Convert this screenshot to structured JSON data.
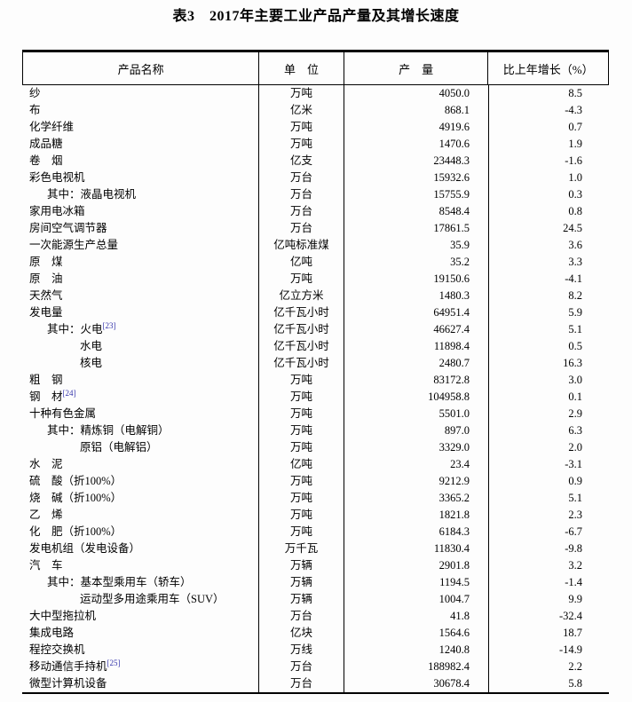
{
  "title": "表3　2017年主要工业产品产量及其增长速度",
  "colors": {
    "text": "#000000",
    "border": "#000000",
    "footnote_link": "#3333aa",
    "background": "#fdfdfd"
  },
  "table": {
    "columns": [
      "产品名称",
      "单　位",
      "产　量",
      "比上年增长（%）"
    ],
    "rows": [
      {
        "name": "纱",
        "indent": 0,
        "unit": "万吨",
        "output": "4050.0",
        "growth": "8.5"
      },
      {
        "name": "布",
        "indent": 0,
        "unit": "亿米",
        "output": "868.1",
        "growth": "-4.3"
      },
      {
        "name": "化学纤维",
        "indent": 0,
        "unit": "万吨",
        "output": "4919.6",
        "growth": "0.7"
      },
      {
        "name": "成品糖",
        "indent": 0,
        "unit": "万吨",
        "output": "1470.6",
        "growth": "1.9"
      },
      {
        "name": "卷　烟",
        "indent": 0,
        "unit": "亿支",
        "output": "23448.3",
        "growth": "-1.6"
      },
      {
        "name": "彩色电视机",
        "indent": 0,
        "unit": "万台",
        "output": "15932.6",
        "growth": "1.0"
      },
      {
        "name": "其中：液晶电视机",
        "indent": 1,
        "unit": "万台",
        "output": "15755.9",
        "growth": "0.3"
      },
      {
        "name": "家用电冰箱",
        "indent": 0,
        "unit": "万台",
        "output": "8548.4",
        "growth": "0.8"
      },
      {
        "name": "房间空气调节器",
        "indent": 0,
        "unit": "万台",
        "output": "17861.5",
        "growth": "24.5"
      },
      {
        "name": "一次能源生产总量",
        "indent": 0,
        "unit": "亿吨标准煤",
        "output": "35.9",
        "growth": "3.6"
      },
      {
        "name": "原　煤",
        "indent": 0,
        "unit": "亿吨",
        "output": "35.2",
        "growth": "3.3"
      },
      {
        "name": "原　油",
        "indent": 0,
        "unit": "万吨",
        "output": "19150.6",
        "growth": "-4.1"
      },
      {
        "name": "天然气",
        "indent": 0,
        "unit": "亿立方米",
        "output": "1480.3",
        "growth": "8.2"
      },
      {
        "name": "发电量",
        "indent": 0,
        "unit": "亿千瓦小时",
        "output": "64951.4",
        "growth": "5.9"
      },
      {
        "name": "其中：火电",
        "sup": "[23]",
        "indent": 1,
        "unit": "亿千瓦小时",
        "output": "46627.4",
        "growth": "5.1"
      },
      {
        "name": "水电",
        "indent": 2,
        "unit": "亿千瓦小时",
        "output": "11898.4",
        "growth": "0.5"
      },
      {
        "name": "核电",
        "indent": 2,
        "unit": "亿千瓦小时",
        "output": "2480.7",
        "growth": "16.3"
      },
      {
        "name": "粗　钢",
        "indent": 0,
        "unit": "万吨",
        "output": "83172.8",
        "growth": "3.0"
      },
      {
        "name": "钢　材",
        "sup": "[24]",
        "indent": 0,
        "unit": "万吨",
        "output": "104958.8",
        "growth": "0.1"
      },
      {
        "name": "十种有色金属",
        "indent": 0,
        "unit": "万吨",
        "output": "5501.0",
        "growth": "2.9"
      },
      {
        "name": "其中：精炼铜（电解铜）",
        "indent": 1,
        "unit": "万吨",
        "output": "897.0",
        "growth": "6.3"
      },
      {
        "name": "原铝（电解铝）",
        "indent": 2,
        "unit": "万吨",
        "output": "3329.0",
        "growth": "2.0"
      },
      {
        "name": "水　泥",
        "indent": 0,
        "unit": "亿吨",
        "output": "23.4",
        "growth": "-3.1"
      },
      {
        "name": "硫　酸（折100%）",
        "indent": 0,
        "unit": "万吨",
        "output": "9212.9",
        "growth": "0.9"
      },
      {
        "name": "烧　碱（折100%）",
        "indent": 0,
        "unit": "万吨",
        "output": "3365.2",
        "growth": "5.1"
      },
      {
        "name": "乙　烯",
        "indent": 0,
        "unit": "万吨",
        "output": "1821.8",
        "growth": "2.3"
      },
      {
        "name": "化　肥（折100%）",
        "indent": 0,
        "unit": "万吨",
        "output": "6184.3",
        "growth": "-6.7"
      },
      {
        "name": "发电机组（发电设备）",
        "indent": 0,
        "unit": "万千瓦",
        "output": "11830.4",
        "growth": "-9.8"
      },
      {
        "name": "汽　车",
        "indent": 0,
        "unit": "万辆",
        "output": "2901.8",
        "growth": "3.2"
      },
      {
        "name": "其中：基本型乘用车（轿车）",
        "indent": 1,
        "unit": "万辆",
        "output": "1194.5",
        "growth": "-1.4"
      },
      {
        "name": "运动型多用途乘用车（SUV）",
        "indent": 2,
        "unit": "万辆",
        "output": "1004.7",
        "growth": "9.9"
      },
      {
        "name": "大中型拖拉机",
        "indent": 0,
        "unit": "万台",
        "output": "41.8",
        "growth": "-32.4"
      },
      {
        "name": "集成电路",
        "indent": 0,
        "unit": "亿块",
        "output": "1564.6",
        "growth": "18.7"
      },
      {
        "name": "程控交换机",
        "indent": 0,
        "unit": "万线",
        "output": "1240.8",
        "growth": "-14.9"
      },
      {
        "name": "移动通信手持机",
        "sup": "[25]",
        "indent": 0,
        "unit": "万台",
        "output": "188982.4",
        "growth": "2.2"
      },
      {
        "name": "微型计算机设备",
        "indent": 0,
        "unit": "万台",
        "output": "30678.4",
        "growth": "5.8"
      }
    ]
  }
}
